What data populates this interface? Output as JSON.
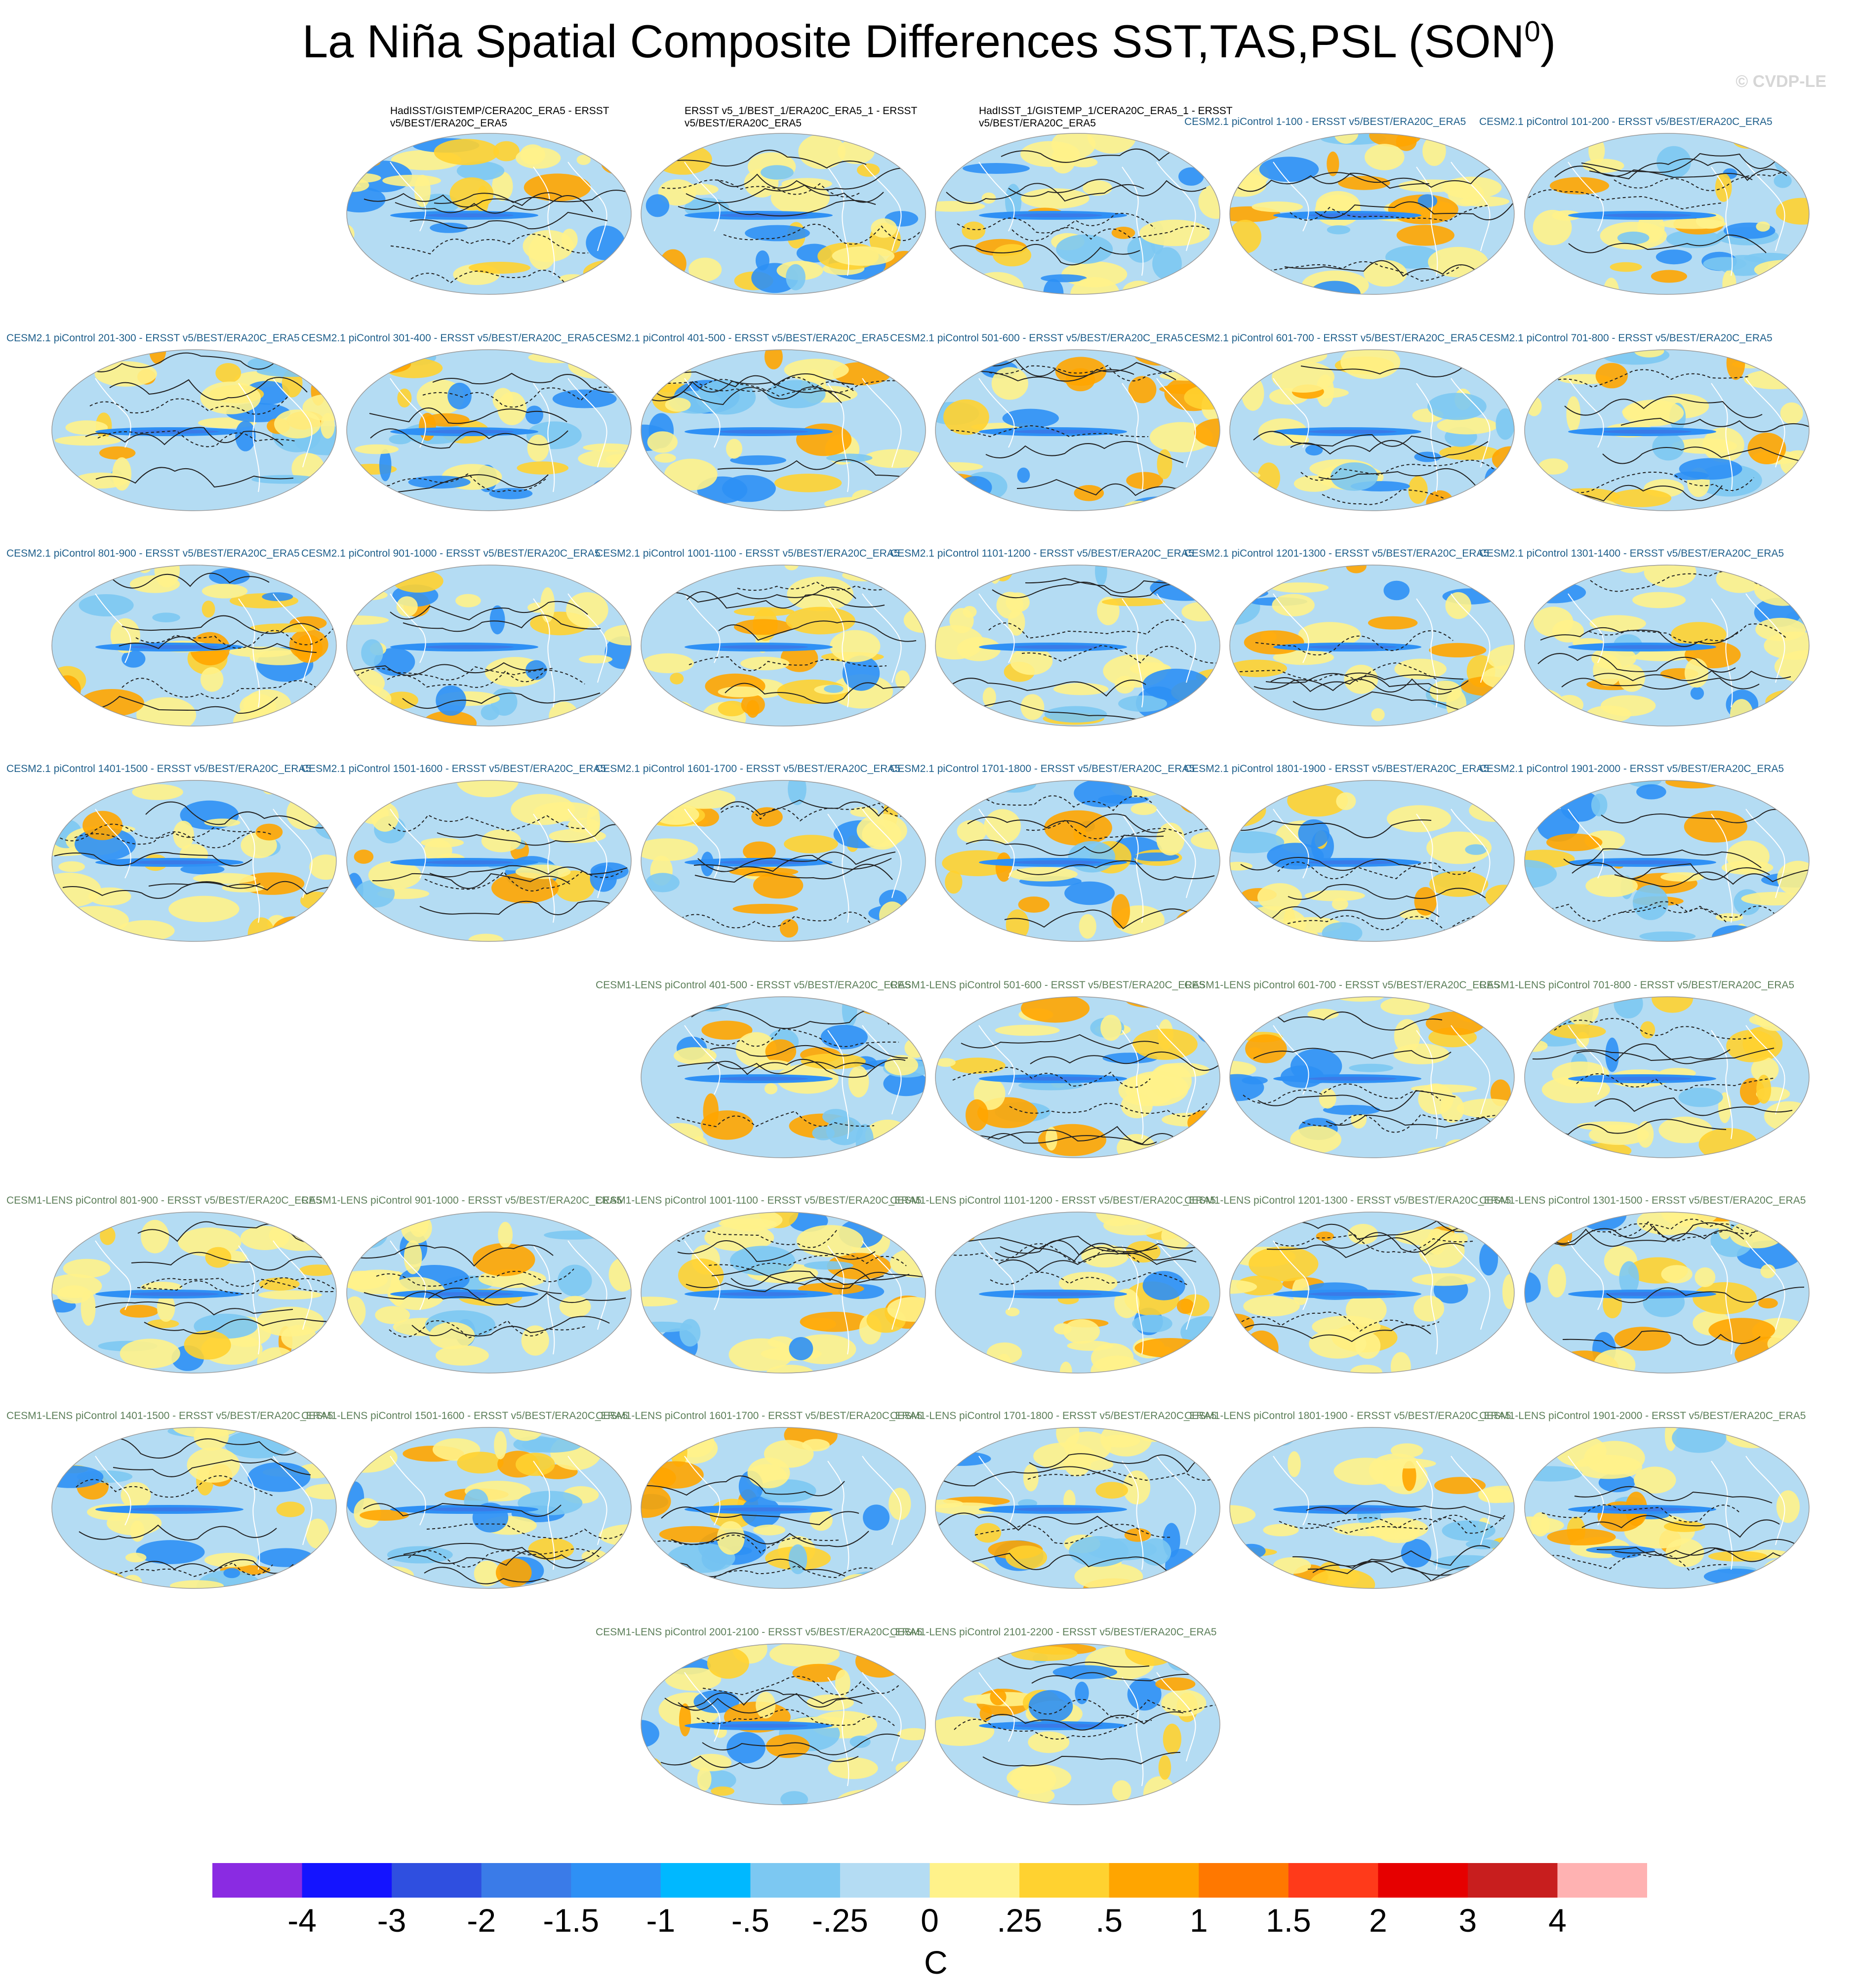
{
  "title": "La Niña Spatial Composite Differences SST,TAS,PSL (SON",
  "title_sup": "0",
  "title_close": ")",
  "watermark": "© CVDP-LE",
  "chart_data": {
    "type": "heatmap",
    "description_note": "",
    "units": "C",
    "colorbar": {
      "labels": [
        "-4",
        "-3",
        "-2",
        "-1.5",
        "-1",
        "-.5",
        "-.25",
        "0",
        ".25",
        ".5",
        "1",
        "1.5",
        "2",
        "3",
        "4"
      ],
      "colors": [
        "#8a2be2",
        "#1414ff",
        "#2f4fe0",
        "#3a7be8",
        "#2e90f5",
        "#00b8ff",
        "#7cc8f2",
        "#b4dcf3",
        "#fff28a",
        "#ffd230",
        "#ffa500",
        "#ff7800",
        "#ff3a1a",
        "#e60000",
        "#c81e1e",
        "#ffb2b2"
      ]
    },
    "panels": [
      {
        "label": "HadISST/GISTEMP/CERA20C_ERA5 - ERSST v5/BEST/ERA20C_ERA5",
        "group": "obs"
      },
      {
        "label": "ERSST v5_1/BEST_1/ERA20C_ERA5_1 - ERSST v5/BEST/ERA20C_ERA5",
        "group": "obs"
      },
      {
        "label": "HadISST_1/GISTEMP_1/CERA20C_ERA5_1 - ERSST v5/BEST/ERA20C_ERA5",
        "group": "obs"
      },
      {
        "label": "CESM2.1 piControl 1-100 - ERSST v5/BEST/ERA20C_ERA5",
        "group": "cesm2"
      },
      {
        "label": "CESM2.1 piControl 101-200 - ERSST v5/BEST/ERA20C_ERA5",
        "group": "cesm2"
      },
      {
        "label": "CESM2.1 piControl 201-300 - ERSST v5/BEST/ERA20C_ERA5",
        "group": "cesm2"
      },
      {
        "label": "CESM2.1 piControl 301-400 - ERSST v5/BEST/ERA20C_ERA5",
        "group": "cesm2"
      },
      {
        "label": "CESM2.1 piControl 401-500 - ERSST v5/BEST/ERA20C_ERA5",
        "group": "cesm2"
      },
      {
        "label": "CESM2.1 piControl 501-600 - ERSST v5/BEST/ERA20C_ERA5",
        "group": "cesm2"
      },
      {
        "label": "CESM2.1 piControl 601-700 - ERSST v5/BEST/ERA20C_ERA5",
        "group": "cesm2"
      },
      {
        "label": "CESM2.1 piControl 701-800 - ERSST v5/BEST/ERA20C_ERA5",
        "group": "cesm2"
      },
      {
        "label": "CESM2.1 piControl 801-900 - ERSST v5/BEST/ERA20C_ERA5",
        "group": "cesm2"
      },
      {
        "label": "CESM2.1 piControl 901-1000 - ERSST v5/BEST/ERA20C_ERA5",
        "group": "cesm2"
      },
      {
        "label": "CESM2.1 piControl 1001-1100 - ERSST v5/BEST/ERA20C_ERA5",
        "group": "cesm2"
      },
      {
        "label": "CESM2.1 piControl 1101-1200 - ERSST v5/BEST/ERA20C_ERA5",
        "group": "cesm2"
      },
      {
        "label": "CESM2.1 piControl 1201-1300 - ERSST v5/BEST/ERA20C_ERA5",
        "group": "cesm2"
      },
      {
        "label": "CESM2.1 piControl 1301-1400 - ERSST v5/BEST/ERA20C_ERA5",
        "group": "cesm2"
      },
      {
        "label": "CESM2.1 piControl 1401-1500 - ERSST v5/BEST/ERA20C_ERA5",
        "group": "cesm2"
      },
      {
        "label": "CESM2.1 piControl 1501-1600 - ERSST v5/BEST/ERA20C_ERA5",
        "group": "cesm2"
      },
      {
        "label": "CESM2.1 piControl 1601-1700 - ERSST v5/BEST/ERA20C_ERA5",
        "group": "cesm2"
      },
      {
        "label": "CESM2.1 piControl 1701-1800 - ERSST v5/BEST/ERA20C_ERA5",
        "group": "cesm2"
      },
      {
        "label": "CESM2.1 piControl 1801-1900 - ERSST v5/BEST/ERA20C_ERA5",
        "group": "cesm2"
      },
      {
        "label": "CESM2.1 piControl 1901-2000 - ERSST v5/BEST/ERA20C_ERA5",
        "group": "cesm2"
      },
      {
        "label": "CESM1-LENS piControl 401-500 - ERSST v5/BEST/ERA20C_ERA5",
        "group": "lens"
      },
      {
        "label": "CESM1-LENS piControl 501-600 - ERSST v5/BEST/ERA20C_ERA5",
        "group": "lens"
      },
      {
        "label": "CESM1-LENS piControl 601-700 - ERSST v5/BEST/ERA20C_ERA5",
        "group": "lens"
      },
      {
        "label": "CESM1-LENS piControl 701-800 - ERSST v5/BEST/ERA20C_ERA5",
        "group": "lens"
      },
      {
        "label": "CESM1-LENS piControl 801-900 - ERSST v5/BEST/ERA20C_ERA5",
        "group": "lens"
      },
      {
        "label": "CESM1-LENS piControl 901-1000 - ERSST v5/BEST/ERA20C_ERA5",
        "group": "lens"
      },
      {
        "label": "CESM1-LENS piControl 1001-1100 - ERSST v5/BEST/ERA20C_ERA5",
        "group": "lens"
      },
      {
        "label": "CESM1-LENS piControl 1101-1200 - ERSST v5/BEST/ERA20C_ERA5",
        "group": "lens"
      },
      {
        "label": "CESM1-LENS piControl 1201-1300 - ERSST v5/BEST/ERA20C_ERA5",
        "group": "lens"
      },
      {
        "label": "CESM1-LENS piControl 1301-1500 - ERSST v5/BEST/ERA20C_ERA5",
        "group": "lens"
      },
      {
        "label": "CESM1-LENS piControl 1401-1500 - ERSST v5/BEST/ERA20C_ERA5",
        "group": "lens"
      },
      {
        "label": "CESM1-LENS piControl 1501-1600 - ERSST v5/BEST/ERA20C_ERA5",
        "group": "lens"
      },
      {
        "label": "CESM1-LENS piControl 1601-1700 - ERSST v5/BEST/ERA20C_ERA5",
        "group": "lens"
      },
      {
        "label": "CESM1-LENS piControl 1701-1800 - ERSST v5/BEST/ERA20C_ERA5",
        "group": "lens"
      },
      {
        "label": "CESM1-LENS piControl 1801-1900 - ERSST v5/BEST/ERA20C_ERA5",
        "group": "lens"
      },
      {
        "label": "CESM1-LENS piControl 1901-2000 - ERSST v5/BEST/ERA20C_ERA5",
        "group": "lens"
      },
      {
        "label": "CESM1-LENS piControl 2001-2100 - ERSST v5/BEST/ERA20C_ERA5",
        "group": "lens"
      },
      {
        "label": "CESM1-LENS piControl 2101-2200 - ERSST v5/BEST/ERA20C_ERA5",
        "group": "lens"
      }
    ]
  }
}
